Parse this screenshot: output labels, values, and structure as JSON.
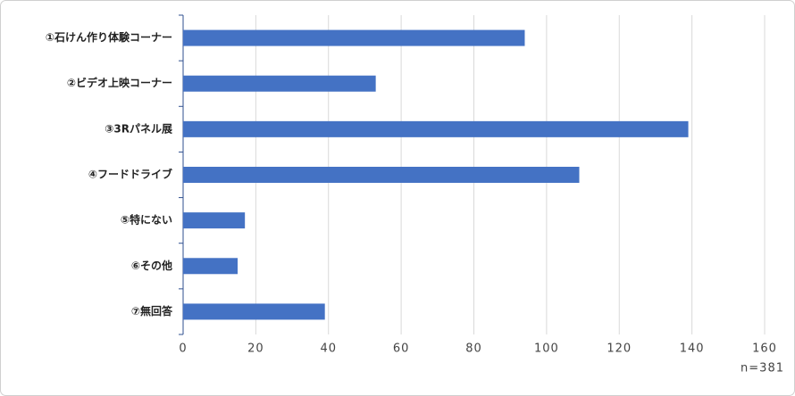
{
  "chart_data": {
    "type": "bar",
    "orientation": "horizontal",
    "categories": [
      "①石けん作り体験コーナー",
      "②ビデオ上映コーナー",
      "③3Rパネル展",
      "④フードドライブ",
      "⑤特にない",
      "⑥その他",
      "⑦無回答"
    ],
    "values": [
      94,
      53,
      139,
      109,
      17,
      15,
      39
    ],
    "color": "#4472c4",
    "xlim": [
      0,
      160
    ],
    "xticks": [
      0,
      20,
      40,
      60,
      80,
      100,
      120,
      140,
      160
    ],
    "grid": true,
    "annotation": "n=381"
  }
}
